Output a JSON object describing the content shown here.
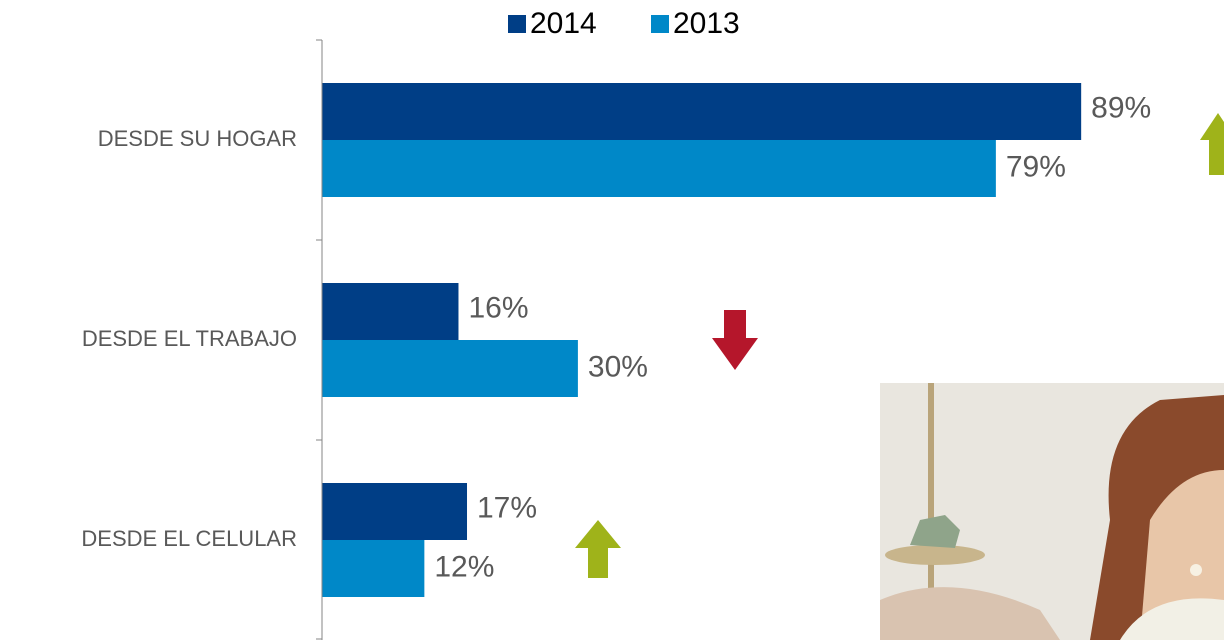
{
  "chart_data": {
    "type": "bar",
    "orientation": "horizontal",
    "categories": [
      "DESDE SU HOGAR",
      "DESDE EL TRABAJO",
      "DESDE EL CELULAR"
    ],
    "series": [
      {
        "name": "2014",
        "color": "#003e86",
        "values": [
          89,
          16,
          17
        ],
        "value_labels": [
          "89%",
          "16%",
          "17%"
        ]
      },
      {
        "name": "2013",
        "color": "#0088c8",
        "values": [
          79,
          30,
          12
        ],
        "value_labels": [
          "79%",
          "30%",
          "12%"
        ]
      }
    ],
    "legend": "top"
  }
}
